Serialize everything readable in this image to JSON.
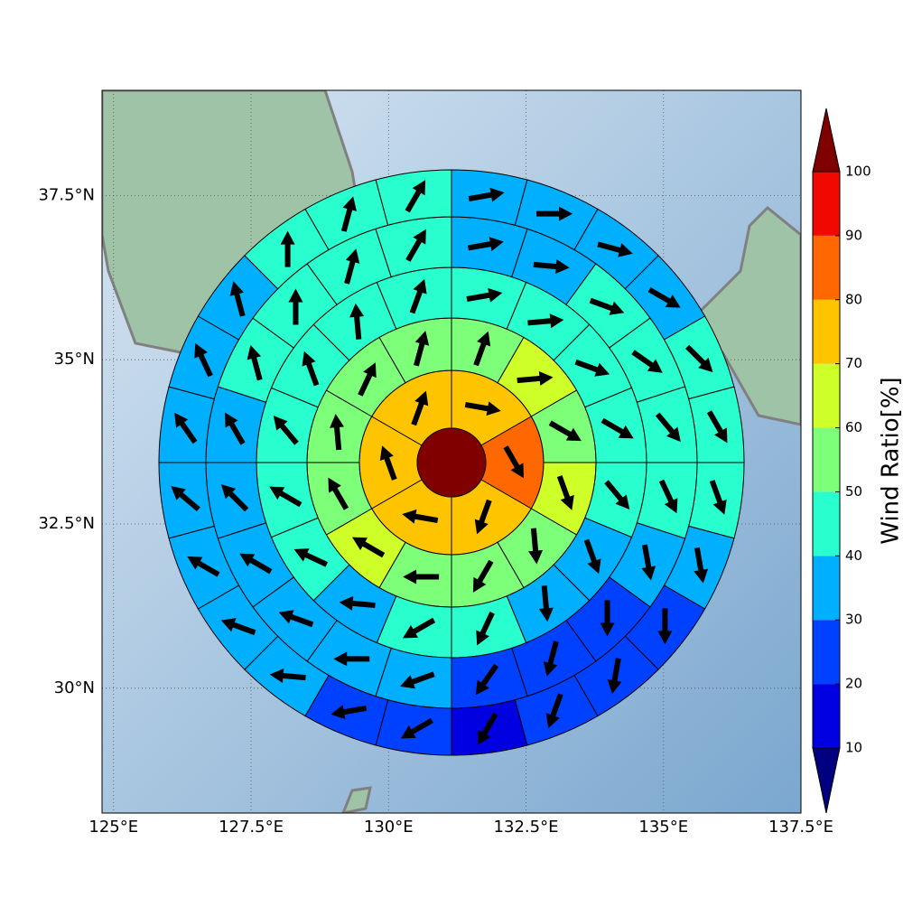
{
  "chart_data": {
    "type": "polar-sector-map",
    "xlim": [
      124.79,
      137.5
    ],
    "ylim": [
      28.1,
      39.1
    ],
    "xticks": [
      {
        "value": 125,
        "label": "125°E"
      },
      {
        "value": 127.5,
        "label": "127.5°E"
      },
      {
        "value": 130,
        "label": "130°E"
      },
      {
        "value": 132.5,
        "label": "132.5°E"
      },
      {
        "value": 135,
        "label": "135°E"
      },
      {
        "value": 137.5,
        "label": "137.5°E"
      }
    ],
    "yticks": [
      {
        "value": 30,
        "label": "30°N"
      },
      {
        "value": 32.5,
        "label": "32.5°N"
      },
      {
        "value": 35,
        "label": "35°N"
      },
      {
        "value": 37.5,
        "label": "37.5°N"
      }
    ],
    "grid": true,
    "colorbar": {
      "label": "Wind Ratio[%]",
      "ticks": [
        10,
        20,
        30,
        40,
        50,
        60,
        70,
        80,
        90,
        100
      ],
      "colors": [
        "#000080",
        "#0000e0",
        "#0040ff",
        "#00b0ff",
        "#29ffce",
        "#7dff7a",
        "#ceff29",
        "#ffc400",
        "#ff6800",
        "#f10800",
        "#800000"
      ]
    },
    "center": {
      "value": 105
    },
    "rings": [
      {
        "values": [
          75,
          85,
          75,
          75,
          75,
          75
        ],
        "directions": [
          100,
          150,
          200,
          280,
          340,
          20
        ]
      },
      {
        "values": [
          55,
          65,
          55,
          65,
          55,
          55,
          55,
          65,
          55,
          55,
          55,
          55
        ],
        "directions": [
          20,
          85,
          120,
          160,
          175,
          210,
          270,
          300,
          330,
          355,
          25,
          15
        ]
      },
      {
        "values": [
          45,
          45,
          45,
          45,
          45,
          35,
          35,
          45,
          45,
          35,
          45,
          45,
          45,
          45,
          45,
          45
        ],
        "directions": [
          80,
          85,
          110,
          120,
          140,
          160,
          175,
          205,
          240,
          275,
          295,
          300,
          320,
          340,
          355,
          20
        ]
      },
      {
        "values": [
          35,
          35,
          45,
          45,
          45,
          45,
          35,
          25,
          25,
          25,
          35,
          35,
          35,
          35,
          35,
          35,
          45,
          45,
          45,
          45
        ],
        "directions": [
          80,
          95,
          110,
          125,
          140,
          155,
          170,
          180,
          195,
          215,
          250,
          270,
          290,
          300,
          315,
          330,
          345,
          0,
          15,
          30
        ]
      },
      {
        "values": [
          35,
          35,
          35,
          35,
          45,
          45,
          45,
          35,
          25,
          25,
          25,
          15,
          25,
          25,
          35,
          35,
          35,
          35,
          35,
          35,
          35,
          45,
          45,
          45
        ],
        "directions": [
          80,
          90,
          105,
          120,
          135,
          150,
          160,
          170,
          180,
          190,
          200,
          210,
          240,
          260,
          275,
          290,
          300,
          310,
          325,
          335,
          345,
          0,
          15,
          30
        ]
      }
    ]
  }
}
